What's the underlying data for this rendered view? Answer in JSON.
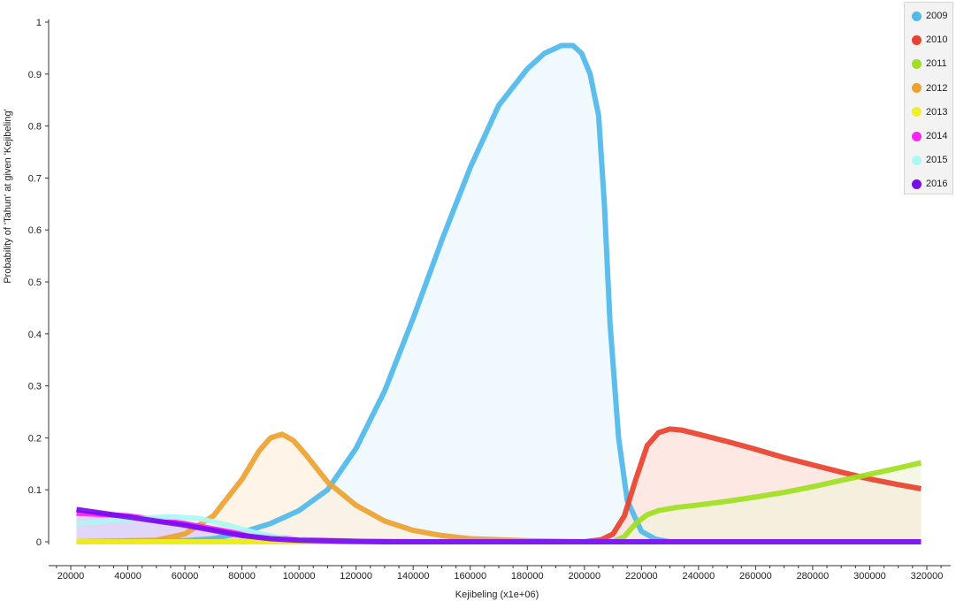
{
  "chart_data": {
    "type": "area",
    "title": "",
    "xlabel": "Kejibeling (x1e+06)",
    "ylabel": "Probability of 'Tahun' at given 'Kejibeling'",
    "xlim": [
      2000,
      325000
    ],
    "ylim": [
      0,
      1
    ],
    "x_ticks": [
      "20000",
      "40000",
      "60000",
      "80000",
      "100000",
      "120000",
      "140000",
      "160000",
      "180000",
      "200000",
      "220000",
      "240000",
      "260000",
      "280000",
      "300000",
      "320000"
    ],
    "y_ticks": [
      "0",
      "0.1",
      "0.2",
      "0.3",
      "0.4",
      "0.5",
      "0.6",
      "0.7",
      "0.8",
      "0.9",
      "1"
    ],
    "grid": false,
    "legend_position": "top-right",
    "series": [
      {
        "name": "2009",
        "color": "#4fb8ec",
        "fill": "#e8f6fc",
        "points": [
          [
            22000,
            0
          ],
          [
            60000,
            0.002
          ],
          [
            70000,
            0.006
          ],
          [
            80000,
            0.018
          ],
          [
            90000,
            0.035
          ],
          [
            100000,
            0.06
          ],
          [
            110000,
            0.1
          ],
          [
            120000,
            0.18
          ],
          [
            130000,
            0.29
          ],
          [
            140000,
            0.43
          ],
          [
            150000,
            0.58
          ],
          [
            160000,
            0.72
          ],
          [
            170000,
            0.84
          ],
          [
            180000,
            0.91
          ],
          [
            186000,
            0.94
          ],
          [
            192000,
            0.955
          ],
          [
            196000,
            0.955
          ],
          [
            199000,
            0.94
          ],
          [
            202000,
            0.9
          ],
          [
            205000,
            0.82
          ],
          [
            207000,
            0.65
          ],
          [
            209000,
            0.42
          ],
          [
            212000,
            0.2
          ],
          [
            215000,
            0.08
          ],
          [
            220000,
            0.02
          ],
          [
            225000,
            0.005
          ],
          [
            230000,
            0
          ],
          [
            318000,
            0
          ]
        ]
      },
      {
        "name": "2010",
        "color": "#e8412c",
        "fill": "#fcdbd6",
        "points": [
          [
            22000,
            0
          ],
          [
            200000,
            0
          ],
          [
            206000,
            0.004
          ],
          [
            210000,
            0.015
          ],
          [
            214000,
            0.05
          ],
          [
            218000,
            0.12
          ],
          [
            222000,
            0.185
          ],
          [
            226000,
            0.21
          ],
          [
            230000,
            0.217
          ],
          [
            234000,
            0.215
          ],
          [
            240000,
            0.207
          ],
          [
            250000,
            0.193
          ],
          [
            260000,
            0.178
          ],
          [
            270000,
            0.162
          ],
          [
            280000,
            0.148
          ],
          [
            290000,
            0.134
          ],
          [
            300000,
            0.121
          ],
          [
            310000,
            0.11
          ],
          [
            318000,
            0.102
          ]
        ]
      },
      {
        "name": "2011",
        "color": "#9fdf1f",
        "fill": "#f0f5d8",
        "points": [
          [
            22000,
            0
          ],
          [
            210000,
            0
          ],
          [
            214000,
            0.01
          ],
          [
            218000,
            0.035
          ],
          [
            222000,
            0.052
          ],
          [
            226000,
            0.06
          ],
          [
            232000,
            0.066
          ],
          [
            240000,
            0.071
          ],
          [
            250000,
            0.078
          ],
          [
            260000,
            0.086
          ],
          [
            270000,
            0.095
          ],
          [
            280000,
            0.106
          ],
          [
            290000,
            0.118
          ],
          [
            300000,
            0.13
          ],
          [
            310000,
            0.142
          ],
          [
            318000,
            0.152
          ]
        ]
      },
      {
        "name": "2012",
        "color": "#eda22f",
        "fill": "#fdf0dc",
        "points": [
          [
            22000,
            0
          ],
          [
            50000,
            0.003
          ],
          [
            60000,
            0.015
          ],
          [
            70000,
            0.05
          ],
          [
            80000,
            0.12
          ],
          [
            86000,
            0.175
          ],
          [
            90000,
            0.2
          ],
          [
            94000,
            0.207
          ],
          [
            98000,
            0.195
          ],
          [
            102000,
            0.17
          ],
          [
            110000,
            0.115
          ],
          [
            120000,
            0.07
          ],
          [
            130000,
            0.04
          ],
          [
            140000,
            0.022
          ],
          [
            150000,
            0.012
          ],
          [
            160000,
            0.006
          ],
          [
            180000,
            0.002
          ],
          [
            200000,
            0
          ],
          [
            318000,
            0
          ]
        ]
      },
      {
        "name": "2013",
        "color": "#f0f020",
        "fill": "#fbfbcf",
        "points": [
          [
            22000,
            0
          ],
          [
            318000,
            0
          ]
        ]
      },
      {
        "name": "2014",
        "color": "#ff22ff",
        "fill": "#f8d2f8",
        "points": [
          [
            22000,
            0.055
          ],
          [
            40000,
            0.05
          ],
          [
            60000,
            0.035
          ],
          [
            80000,
            0.015
          ],
          [
            100000,
            0.004
          ],
          [
            120000,
            0.001
          ],
          [
            140000,
            0
          ],
          [
            318000,
            0
          ]
        ]
      },
      {
        "name": "2015",
        "color": "#aef6f2",
        "fill": "#e6fbfa",
        "points": [
          [
            22000,
            0.035
          ],
          [
            40000,
            0.043
          ],
          [
            50000,
            0.047
          ],
          [
            56000,
            0.048
          ],
          [
            65000,
            0.045
          ],
          [
            75000,
            0.032
          ],
          [
            85000,
            0.017
          ],
          [
            95000,
            0.006
          ],
          [
            110000,
            0.001
          ],
          [
            130000,
            0
          ],
          [
            318000,
            0
          ]
        ]
      },
      {
        "name": "2016",
        "color": "#7a0bef",
        "fill": "#dcc6f8",
        "points": [
          [
            22000,
            0.062
          ],
          [
            40000,
            0.048
          ],
          [
            60000,
            0.032
          ],
          [
            70000,
            0.022
          ],
          [
            80000,
            0.012
          ],
          [
            90000,
            0.006
          ],
          [
            100000,
            0.003
          ],
          [
            115000,
            0.001
          ],
          [
            130000,
            0
          ],
          [
            318000,
            0
          ]
        ]
      }
    ]
  }
}
